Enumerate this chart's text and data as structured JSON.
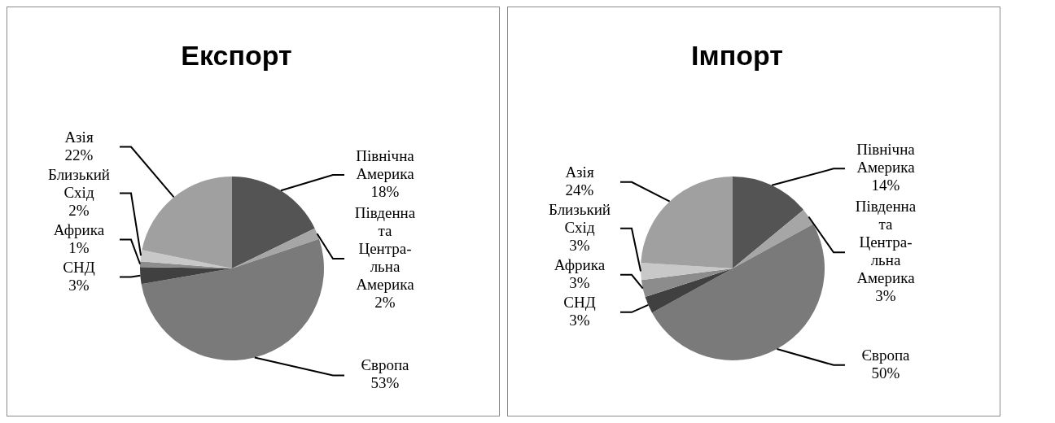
{
  "chart_data": [
    {
      "type": "pie",
      "title": "Експорт",
      "categories": [
        "Північна\nАмерика",
        "Південна\nта\nЦентра-\nльна\nАмерика",
        "Європа",
        "СНД",
        "Африка",
        "Близький\nСхід",
        "Азія"
      ],
      "values": [
        18,
        2,
        53,
        3,
        1,
        2,
        22
      ],
      "value_labels": [
        "18%",
        "2%",
        "53%",
        "3%",
        "1%",
        "2%",
        "22%"
      ],
      "colors": [
        "#545454",
        "#a6a6a6",
        "#7a7a7a",
        "#404040",
        "#8c8c8c",
        "#c8c8c8",
        "#a0a0a0"
      ]
    },
    {
      "type": "pie",
      "title": "Імпорт",
      "categories": [
        "Північна\nАмерика",
        "Південна\nта\nЦентра-\nльна\nАмерика",
        "Європа",
        "СНД",
        "Африка",
        "Близький\nСхід",
        "Азія"
      ],
      "values": [
        14,
        3,
        50,
        3,
        3,
        3,
        24
      ],
      "value_labels": [
        "14%",
        "3%",
        "50%",
        "3%",
        "3%",
        "3%",
        "24%"
      ],
      "colors": [
        "#545454",
        "#a6a6a6",
        "#7a7a7a",
        "#404040",
        "#8c8c8c",
        "#c8c8c8",
        "#a0a0a0"
      ]
    }
  ]
}
